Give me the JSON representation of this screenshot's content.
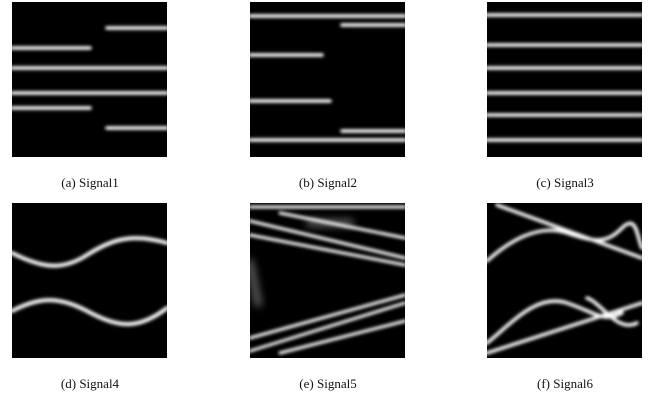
{
  "captions": [
    "(a) Signal1",
    "(b) Signal2",
    "(c) Signal3",
    "(d) Signal4",
    "(e) Signal5",
    "(f) Signal6"
  ]
}
